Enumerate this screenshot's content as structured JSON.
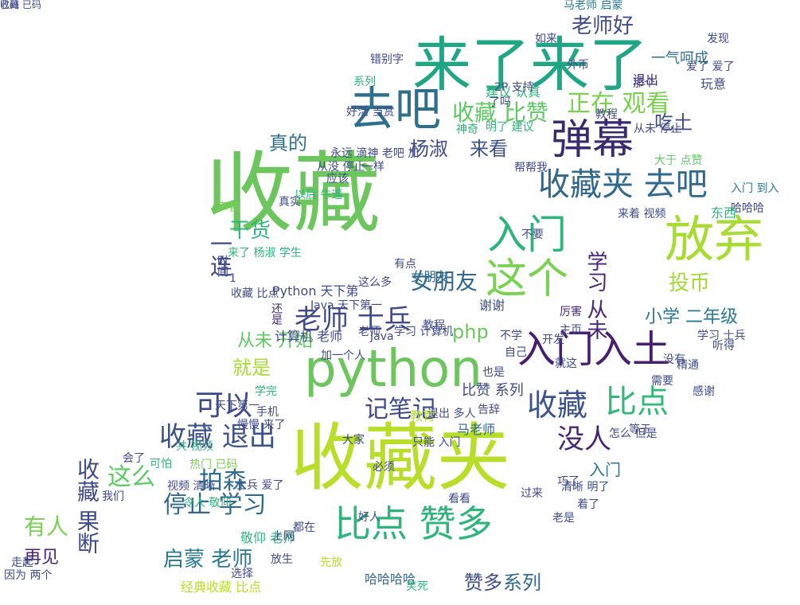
{
  "words": [
    {
      "text": "收藏",
      "color": "#6cc65d"
    },
    {
      "text": "收藏夹",
      "color": "#b8de29"
    },
    {
      "text": "来了来了",
      "color": "#21a685"
    },
    {
      "text": "去吧",
      "color": "#2d708e"
    },
    {
      "text": "弹幕",
      "color": "#3b2a6e"
    },
    {
      "text": "python",
      "color": "#6cc65d"
    },
    {
      "text": "入门入土",
      "color": "#481f70"
    },
    {
      "text": "放弃",
      "color": "#a8db34"
    },
    {
      "text": "这个",
      "color": "#7ad151"
    },
    {
      "text": "入门",
      "color": "#2fb47c"
    },
    {
      "text": "收藏夹 去吧",
      "color": "#31688e"
    },
    {
      "text": "比点 赞多",
      "color": "#2fb47c"
    },
    {
      "text": "比点",
      "color": "#35b779"
    },
    {
      "text": "老师 士兵",
      "color": "#3e4a89"
    },
    {
      "text": "收藏 比赞",
      "color": "#5ec962"
    },
    {
      "text": "正在 观看",
      "color": "#7ad151"
    },
    {
      "text": "收藏 退出",
      "color": "#3b528b"
    },
    {
      "text": "可以",
      "color": "#3e4a89"
    },
    {
      "text": "就是",
      "color": "#a5db36"
    },
    {
      "text": "记笔记",
      "color": "#3e4a89"
    },
    {
      "text": "收藏",
      "color": "#3b528b"
    },
    {
      "text": "没人",
      "color": "#482677"
    },
    {
      "text": "这么",
      "color": "#5ec962"
    },
    {
      "text": "拍森",
      "color": "#2e6d8e"
    },
    {
      "text": "停止 学习",
      "color": "#31688e"
    },
    {
      "text": "有人",
      "color": "#7ad151"
    },
    {
      "text": "收藏 果断",
      "color": "#3e4a89"
    },
    {
      "text": "启蒙 老师",
      "color": "#2a788e"
    },
    {
      "text": "赞多",
      "color": "#3e4a89"
    },
    {
      "text": "系列",
      "color": "#31688e"
    },
    {
      "text": "老师好",
      "color": "#3e4a89"
    },
    {
      "text": "小学 二年级",
      "color": "#2a788e"
    },
    {
      "text": "学习 从未",
      "color": "#482677"
    },
    {
      "text": "投币",
      "color": "#a0da39"
    },
    {
      "text": "女朋友",
      "color": "#31688e"
    },
    {
      "text": "一连",
      "color": "#3e4a89"
    },
    {
      "text": "干货",
      "color": "#2fb47c"
    },
    {
      "text": "真的",
      "color": "#2d708e"
    },
    {
      "text": "来看",
      "color": "#3b528b"
    },
    {
      "text": "杨淑",
      "color": "#3e4a89"
    },
    {
      "text": "吃土",
      "color": "#3e4a89"
    },
    {
      "text": "从未 开始",
      "color": "#5ec962"
    },
    {
      "text": "php",
      "color": "#6cc65d"
    },
    {
      "text": "一气呵成",
      "color": "#2d708e"
    },
    {
      "text": "退出",
      "color": "#482677"
    },
    {
      "text": "马老师 启蒙",
      "color": "#2a788e"
    },
    {
      "text": "比赞 系列",
      "color": "#3e4a89"
    },
    {
      "text": "入门",
      "color": "#2a788e"
    },
    {
      "text": "Python 天下第",
      "color": "#3e4a89"
    },
    {
      "text": "谢谢",
      "color": "#3b528b"
    },
    {
      "text": "教育",
      "color": "#b8de29"
    },
    {
      "text": "马老师",
      "color": "#31688e"
    },
    {
      "text": "计算机 老师",
      "color": "#3e4a89"
    },
    {
      "text": "再见",
      "color": "#482677"
    },
    {
      "text": "经典收藏 比点",
      "color": "#b8de29"
    },
    {
      "text": "敬仰 老师",
      "color": "#2fb47c"
    },
    {
      "text": "哈哈哈哈",
      "color": "#31688e"
    },
    {
      "text": "老是",
      "color": "#3e4a89"
    },
    {
      "text": "厉害",
      "color": "#482677"
    },
    {
      "text": "看看",
      "color": "#3e4a89"
    },
    {
      "text": "学习 士兵",
      "color": "#3e4a89"
    },
    {
      "text": "玩意",
      "color": "#3e4a89"
    },
    {
      "text": "错别字",
      "color": "#3e4a89"
    },
    {
      "text": "发现",
      "color": "#3e4a89"
    },
    {
      "text": "如来",
      "color": "#3e4a89"
    },
    {
      "text": "外币",
      "color": "#3e4a89"
    },
    {
      "text": "建议 认真",
      "color": "#2fb47c"
    },
    {
      "text": "教程",
      "color": "#3e4a89"
    },
    {
      "text": "那个",
      "color": "#3e4a89"
    },
    {
      "text": "爱了 爱了",
      "color": "#3e4a89"
    },
    {
      "text": "从未 停止",
      "color": "#3e4a89"
    },
    {
      "text": "帮帮我",
      "color": "#3e4a89"
    },
    {
      "text": "大于 点赞",
      "color": "#5ec962"
    },
    {
      "text": "入门 到入",
      "color": "#2a788e"
    },
    {
      "text": "哈哈哈",
      "color": "#3e4a89"
    },
    {
      "text": "东西",
      "color": "#2fb47c"
    },
    {
      "text": "来着 视频",
      "color": "#3e4a89"
    },
    {
      "text": "主页",
      "color": "#3e4a89"
    },
    {
      "text": "开发",
      "color": "#3e4a89"
    },
    {
      "text": "不要",
      "color": "#3e4a89"
    },
    {
      "text": "有点",
      "color": "#3e4a89"
    },
    {
      "text": "还是",
      "color": "#482677"
    },
    {
      "text": "天下第一",
      "color": "#3e4a89"
    },
    {
      "text": "手机",
      "color": "#3e4a89"
    },
    {
      "text": "热门 已码",
      "color": "#7ad151"
    },
    {
      "text": "共 视频",
      "color": "#2fb47c"
    },
    {
      "text": "可怕",
      "color": "#2fb47c"
    },
    {
      "text": "视频 清晰",
      "color": "#3e4a89"
    },
    {
      "text": "令人 敬仰",
      "color": "#2fb47c"
    },
    {
      "text": "我们",
      "color": "#3e4a89"
    },
    {
      "text": "走起",
      "color": "#3e4a89"
    },
    {
      "text": "因为 两个",
      "color": "#3e4a89"
    },
    {
      "text": "女朋友",
      "color": "#31688e"
    },
    {
      "text": "都在",
      "color": "#3e4a89"
    },
    {
      "text": "放生",
      "color": "#3e4a89"
    },
    {
      "text": "上网",
      "color": "#3e4a89"
    },
    {
      "text": "选择",
      "color": "#3e4a89"
    },
    {
      "text": "慢慢 来了",
      "color": "#3e4a89"
    },
    {
      "text": "大家",
      "color": "#3e4a89"
    },
    {
      "text": "告辞",
      "color": "#3e4a89"
    },
    {
      "text": "巧了",
      "color": "#3e4a89"
    },
    {
      "text": "等于",
      "color": "#3e4a89"
    },
    {
      "text": "怎么 但是",
      "color": "#3e4a89"
    },
    {
      "text": "清晰 明了",
      "color": "#3e4a89"
    },
    {
      "text": "过来",
      "color": "#3e4a89"
    },
    {
      "text": "着了",
      "color": "#3e4a89"
    },
    {
      "text": "感谢",
      "color": "#3e4a89"
    },
    {
      "text": "精通",
      "color": "#3e4a89"
    },
    {
      "text": "没有",
      "color": "#3e4a89"
    },
    {
      "text": "听得",
      "color": "#3e4a89"
    },
    {
      "text": "需要",
      "color": "#3e4a89"
    },
    {
      "text": "自己",
      "color": "#3e4a89"
    },
    {
      "text": "不学",
      "color": "#3e4a89"
    },
    {
      "text": "就这",
      "color": "#3e4a89"
    },
    {
      "text": "也是",
      "color": "#3e4a89"
    },
    {
      "text": "明了 建议",
      "color": "#2fb47c"
    },
    {
      "text": "了吗",
      "color": "#3e4a89"
    },
    {
      "text": "神奇",
      "color": "#2fb47c"
    },
    {
      "text": "2P 支持",
      "color": "#3e4a89"
    },
    {
      "text": "系列",
      "color": "#2fb47c"
    },
    {
      "text": "好活 当赏",
      "color": "#3e4a89"
    },
    {
      "text": "永远 滴神 老吧 加",
      "color": "#3e4a89"
    },
    {
      "text": "从没 停止",
      "color": "#3e4a89"
    },
    {
      "text": "应该",
      "color": "#3e4a89"
    },
    {
      "text": "真实",
      "color": "#3e4a89"
    },
    {
      "text": "声音",
      "color": "#7ad151"
    },
    {
      "text": "以后 牛逼",
      "color": "#2fb47c"
    },
    {
      "text": "一样",
      "color": "#3e4a89"
    },
    {
      "text": "来了 杨淑 学生",
      "color": "#2fb47c"
    },
    {
      "text": "这么多",
      "color": "#3e4a89"
    },
    {
      "text": "Java 天下第一",
      "color": "#3e4a89"
    },
    {
      "text": "1",
      "color": "#3e4a89"
    },
    {
      "text": "收藏 比点",
      "color": "#3e4a89"
    },
    {
      "text": "学习 计算机",
      "color": "#3e4a89"
    },
    {
      "text": "时间",
      "color": "#3e4a89"
    },
    {
      "text": "老师",
      "color": "#3e4a89"
    },
    {
      "text": "教程",
      "color": "#3e4a89"
    },
    {
      "text": "Java",
      "color": "#3e4a89"
    },
    {
      "text": "加一个人",
      "color": "#3e4a89"
    },
    {
      "text": "只能 入门",
      "color": "#3e4a89"
    },
    {
      "text": "会了",
      "color": "#3e4a89"
    },
    {
      "text": "好人",
      "color": "#3e4a89"
    },
    {
      "text": "先放",
      "color": "#b8de29"
    },
    {
      "text": "必须",
      "color": "#3e4a89"
    },
    {
      "text": "笑死",
      "color": "#2fb47c"
    },
    {
      "text": "学完",
      "color": "#2fb47c"
    },
    {
      "text": "退出 多人",
      "color": "#3e4a89"
    },
    {
      "text": "士兵 爱了",
      "color": "#3e4a89"
    },
    {
      "text": "已码",
      "color": "#3e4a89"
    },
    {
      "text": "收藏 已码",
      "color": "#3e4a89"
    }
  ]
}
